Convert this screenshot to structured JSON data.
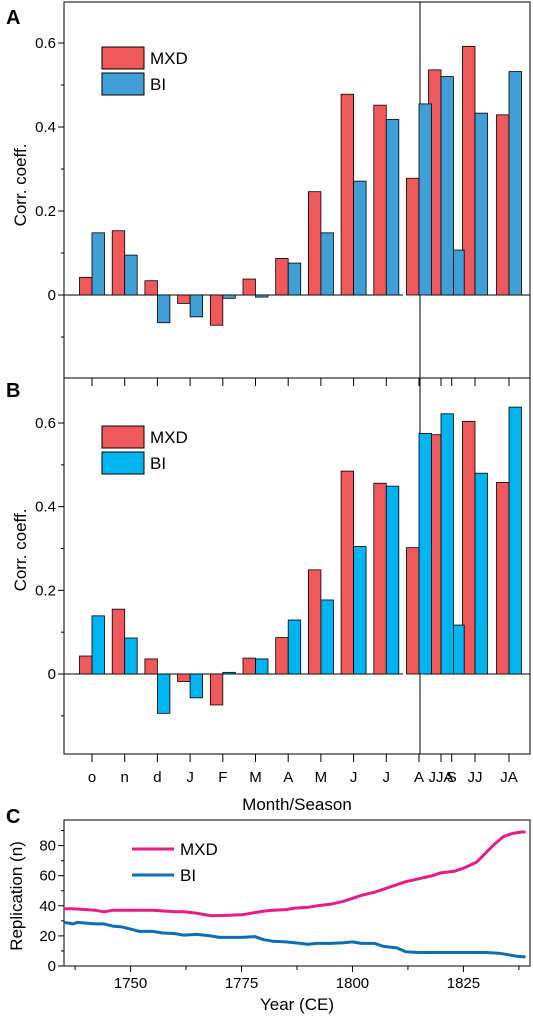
{
  "colors": {
    "mxd": "#F0595C",
    "bi_a": "#3F9FD6",
    "bi_b": "#00B4F0",
    "mxd_line": "#E81C86",
    "bi_line": "#0D6DB5"
  },
  "chart_data": [
    {
      "panel": "A",
      "type": "bar",
      "ylabel": "Corr. coeff.",
      "ylim": [
        -0.2,
        0.7
      ],
      "yticks": [
        "0",
        "0.2",
        "0.4",
        "0.6"
      ],
      "grid": false,
      "legend": "top-left",
      "categories": [
        "o",
        "n",
        "d",
        "J",
        "F",
        "M",
        "A",
        "M",
        "J",
        "J",
        "A",
        "S",
        "JJA",
        "JJ",
        "JA"
      ],
      "series": [
        {
          "name": "MXD",
          "values": [
            0.042,
            0.153,
            0.034,
            -0.02,
            -0.072,
            0.038,
            0.087,
            0.246,
            0.478,
            0.452,
            0.278,
            0.13,
            0.536,
            0.592,
            0.429
          ]
        },
        {
          "name": "BI",
          "values": [
            0.148,
            0.095,
            -0.066,
            -0.052,
            -0.008,
            -0.005,
            0.076,
            0.148,
            0.271,
            0.418,
            0.455,
            0.107,
            0.52,
            0.433,
            0.532
          ]
        }
      ]
    },
    {
      "panel": "B",
      "type": "bar",
      "ylabel": "Corr. coeff.",
      "xlabel": "Month/Season",
      "ylim": [
        -0.2,
        0.7
      ],
      "yticks": [
        "0",
        "0.2",
        "0.4",
        "0.6"
      ],
      "grid": false,
      "legend": "top-left",
      "categories": [
        "o",
        "n",
        "d",
        "J",
        "F",
        "M",
        "A",
        "M",
        "J",
        "J",
        "A",
        "S",
        "JJA",
        "JJ",
        "JA"
      ],
      "series": [
        {
          "name": "MXD",
          "values": [
            0.043,
            0.155,
            0.036,
            -0.018,
            -0.074,
            0.038,
            0.087,
            0.249,
            0.485,
            0.456,
            0.302,
            0.08,
            0.572,
            0.604,
            0.458
          ]
        },
        {
          "name": "BI",
          "values": [
            0.139,
            0.086,
            -0.094,
            -0.057,
            0.004,
            0.036,
            0.129,
            0.177,
            0.305,
            0.449,
            0.575,
            0.117,
            0.622,
            0.48,
            0.638
          ]
        }
      ]
    },
    {
      "panel": "C",
      "type": "line",
      "ylabel": "Replication (n)",
      "xlabel": "Year (CE)",
      "xlim": [
        1735,
        1840
      ],
      "ylim": [
        0,
        97
      ],
      "xticks": [
        "1750",
        "1775",
        "1800",
        "1825"
      ],
      "yticks": [
        "0",
        "20",
        "40",
        "60",
        "80"
      ],
      "grid": false,
      "legend": "top-left",
      "series": [
        {
          "name": "MXD",
          "x": [
            1735,
            1737,
            1740,
            1742,
            1744,
            1746,
            1748,
            1750,
            1755,
            1760,
            1762,
            1765,
            1768,
            1770,
            1775,
            1778,
            1780,
            1782,
            1785,
            1787,
            1790,
            1792,
            1795,
            1798,
            1800,
            1802,
            1805,
            1807,
            1810,
            1812,
            1815,
            1818,
            1820,
            1823,
            1825,
            1828,
            1830,
            1832,
            1834,
            1836,
            1838,
            1839
          ],
          "y": [
            38,
            38,
            37.5,
            37,
            36,
            37,
            37,
            37,
            37,
            36,
            36,
            35,
            33.5,
            33.5,
            34,
            35.5,
            36.5,
            37,
            37.5,
            38.5,
            39,
            40,
            41,
            43,
            45,
            47,
            49,
            51,
            54,
            56,
            58,
            60,
            62,
            63,
            65,
            69,
            75,
            81,
            86,
            88,
            89,
            89
          ]
        },
        {
          "name": "BI",
          "x": [
            1735,
            1737,
            1738,
            1740,
            1742,
            1744,
            1746,
            1748,
            1750,
            1752,
            1755,
            1757,
            1760,
            1762,
            1765,
            1768,
            1770,
            1775,
            1778,
            1780,
            1782,
            1785,
            1787,
            1790,
            1792,
            1795,
            1798,
            1800,
            1802,
            1805,
            1807,
            1810,
            1812,
            1815,
            1820,
            1825,
            1830,
            1833,
            1835,
            1837,
            1839
          ],
          "y": [
            29,
            28,
            29,
            28.5,
            28,
            28,
            26.5,
            26,
            24.5,
            23,
            23,
            22,
            21.5,
            20.5,
            21,
            20,
            19,
            19,
            19.5,
            17.5,
            16.5,
            16,
            15.5,
            14.5,
            15,
            15,
            15.5,
            16,
            15,
            15,
            13,
            12,
            9.5,
            9,
            9,
            9,
            9,
            8.5,
            7.5,
            6.5,
            6
          ]
        }
      ]
    }
  ]
}
